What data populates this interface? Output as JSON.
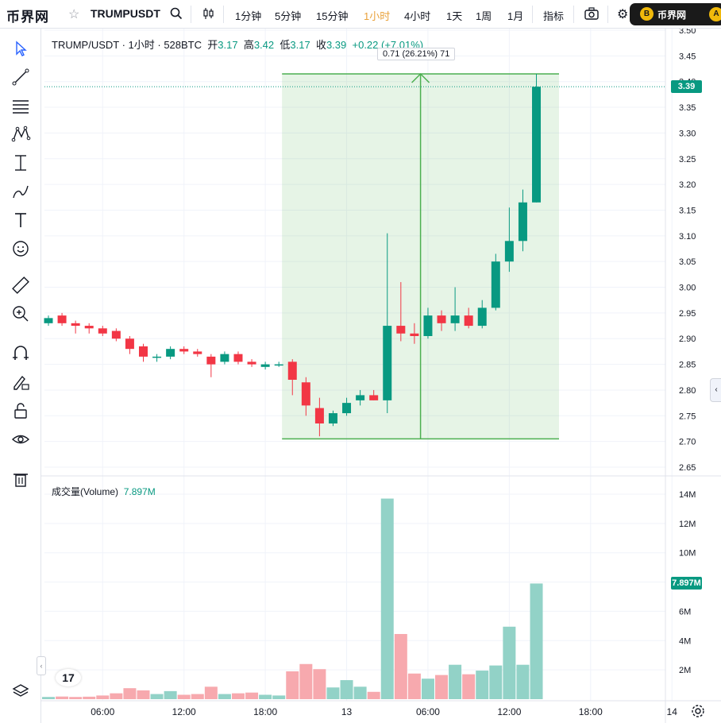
{
  "topbar": {
    "logo": "币界网",
    "symbol": "TRUMPUSDT",
    "intervals": [
      "1分钟",
      "5分钟",
      "15分钟",
      "1小时",
      "4小时",
      "1天",
      "1周",
      "1月"
    ],
    "active_interval": "1小时",
    "indicators_label": "指标",
    "brand_label": "币界网",
    "brand_coin": "B",
    "brand_end": "A"
  },
  "legend": {
    "pair": "TRUMP/USDT · 1小时 · 528BTC",
    "open_label": "开",
    "open": "3.17",
    "high_label": "高",
    "high": "3.42",
    "low_label": "低",
    "low": "3.17",
    "close_label": "收",
    "close": "3.39",
    "change": "+0.22 (+7.01%)"
  },
  "measure_tooltip": "0.71 (26.21%) 71",
  "volume_legend": {
    "label": "成交量(Volume)",
    "value": "7.897M"
  },
  "tv_logo": "17",
  "colors": {
    "up": "#089981",
    "down": "#f23645",
    "vol_up": "#92d2c7",
    "vol_down": "#f7a9ae",
    "measure": "#4caf50",
    "active": "#e9a23b"
  },
  "chart_data": {
    "type": "candlestick",
    "price_axis": {
      "min": 2.65,
      "max": 3.5,
      "ticks": [
        "3.50",
        "3.45",
        "3.40",
        "3.35",
        "3.30",
        "3.25",
        "3.20",
        "3.15",
        "3.10",
        "3.05",
        "3.00",
        "2.95",
        "2.90",
        "2.85",
        "2.80",
        "2.75",
        "2.70",
        "2.65"
      ]
    },
    "current_price": "3.39",
    "volume_axis": {
      "max": 14,
      "ticks": [
        "14M",
        "12M",
        "10M",
        "8M",
        "6M",
        "4M",
        "2M"
      ]
    },
    "current_volume": "7.897M",
    "time_labels": [
      {
        "label": "06:00",
        "index": 4
      },
      {
        "label": "12:00",
        "index": 10
      },
      {
        "label": "18:00",
        "index": 16
      },
      {
        "label": "13",
        "index": 22
      },
      {
        "label": "06:00",
        "index": 28
      },
      {
        "label": "12:00",
        "index": 34
      },
      {
        "label": "18:00",
        "index": 40
      },
      {
        "label": "14",
        "index": 46
      }
    ],
    "candles": [
      {
        "o": 2.93,
        "h": 2.945,
        "l": 2.925,
        "c": 2.94,
        "v": 0.15
      },
      {
        "o": 2.945,
        "h": 2.95,
        "l": 2.925,
        "c": 2.93,
        "v": 0.18
      },
      {
        "o": 2.93,
        "h": 2.935,
        "l": 2.91,
        "c": 2.925,
        "v": 0.15
      },
      {
        "o": 2.925,
        "h": 2.93,
        "l": 2.91,
        "c": 2.92,
        "v": 0.17
      },
      {
        "o": 2.92,
        "h": 2.925,
        "l": 2.905,
        "c": 2.91,
        "v": 0.25
      },
      {
        "o": 2.915,
        "h": 2.92,
        "l": 2.895,
        "c": 2.9,
        "v": 0.4
      },
      {
        "o": 2.9,
        "h": 2.905,
        "l": 2.87,
        "c": 2.88,
        "v": 0.75
      },
      {
        "o": 2.885,
        "h": 2.89,
        "l": 2.855,
        "c": 2.865,
        "v": 0.6
      },
      {
        "o": 2.865,
        "h": 2.87,
        "l": 2.855,
        "c": 2.865,
        "v": 0.35
      },
      {
        "o": 2.865,
        "h": 2.885,
        "l": 2.86,
        "c": 2.88,
        "v": 0.55
      },
      {
        "o": 2.88,
        "h": 2.885,
        "l": 2.87,
        "c": 2.875,
        "v": 0.3
      },
      {
        "o": 2.875,
        "h": 2.88,
        "l": 2.865,
        "c": 2.87,
        "v": 0.35
      },
      {
        "o": 2.865,
        "h": 2.87,
        "l": 2.825,
        "c": 2.85,
        "v": 0.85
      },
      {
        "o": 2.855,
        "h": 2.875,
        "l": 2.85,
        "c": 2.87,
        "v": 0.35
      },
      {
        "o": 2.87,
        "h": 2.875,
        "l": 2.85,
        "c": 2.855,
        "v": 0.4
      },
      {
        "o": 2.855,
        "h": 2.86,
        "l": 2.845,
        "c": 2.85,
        "v": 0.45
      },
      {
        "o": 2.845,
        "h": 2.855,
        "l": 2.84,
        "c": 2.85,
        "v": 0.3
      },
      {
        "o": 2.85,
        "h": 2.855,
        "l": 2.845,
        "c": 2.85,
        "v": 0.25
      },
      {
        "o": 2.855,
        "h": 2.86,
        "l": 2.79,
        "c": 2.82,
        "v": 1.9
      },
      {
        "o": 2.815,
        "h": 2.825,
        "l": 2.75,
        "c": 2.77,
        "v": 2.4
      },
      {
        "o": 2.765,
        "h": 2.785,
        "l": 2.71,
        "c": 2.735,
        "v": 2.05
      },
      {
        "o": 2.735,
        "h": 2.76,
        "l": 2.73,
        "c": 2.755,
        "v": 0.8
      },
      {
        "o": 2.755,
        "h": 2.785,
        "l": 2.75,
        "c": 2.775,
        "v": 1.3
      },
      {
        "o": 2.78,
        "h": 2.8,
        "l": 2.77,
        "c": 2.79,
        "v": 0.85
      },
      {
        "o": 2.79,
        "h": 2.8,
        "l": 2.78,
        "c": 2.78,
        "v": 0.5
      },
      {
        "o": 2.78,
        "h": 3.105,
        "l": 2.755,
        "c": 2.925,
        "v": 13.7
      },
      {
        "o": 2.925,
        "h": 3.01,
        "l": 2.895,
        "c": 2.91,
        "v": 4.45
      },
      {
        "o": 2.91,
        "h": 2.93,
        "l": 2.89,
        "c": 2.905,
        "v": 1.75
      },
      {
        "o": 2.905,
        "h": 2.96,
        "l": 2.9,
        "c": 2.945,
        "v": 1.4
      },
      {
        "o": 2.945,
        "h": 2.955,
        "l": 2.915,
        "c": 2.93,
        "v": 1.65
      },
      {
        "o": 2.93,
        "h": 3.0,
        "l": 2.915,
        "c": 2.945,
        "v": 2.35
      },
      {
        "o": 2.945,
        "h": 2.96,
        "l": 2.92,
        "c": 2.925,
        "v": 1.7
      },
      {
        "o": 2.925,
        "h": 2.975,
        "l": 2.92,
        "c": 2.96,
        "v": 1.95
      },
      {
        "o": 2.96,
        "h": 3.065,
        "l": 2.955,
        "c": 3.05,
        "v": 2.3
      },
      {
        "o": 3.05,
        "h": 3.155,
        "l": 3.03,
        "c": 3.09,
        "v": 4.95
      },
      {
        "o": 3.09,
        "h": 3.19,
        "l": 3.07,
        "c": 3.165,
        "v": 2.35
      },
      {
        "o": 3.165,
        "h": 3.415,
        "l": 3.165,
        "c": 3.39,
        "v": 7.9
      }
    ],
    "measure": {
      "from_price": 2.705,
      "to_price": 3.415
    }
  }
}
